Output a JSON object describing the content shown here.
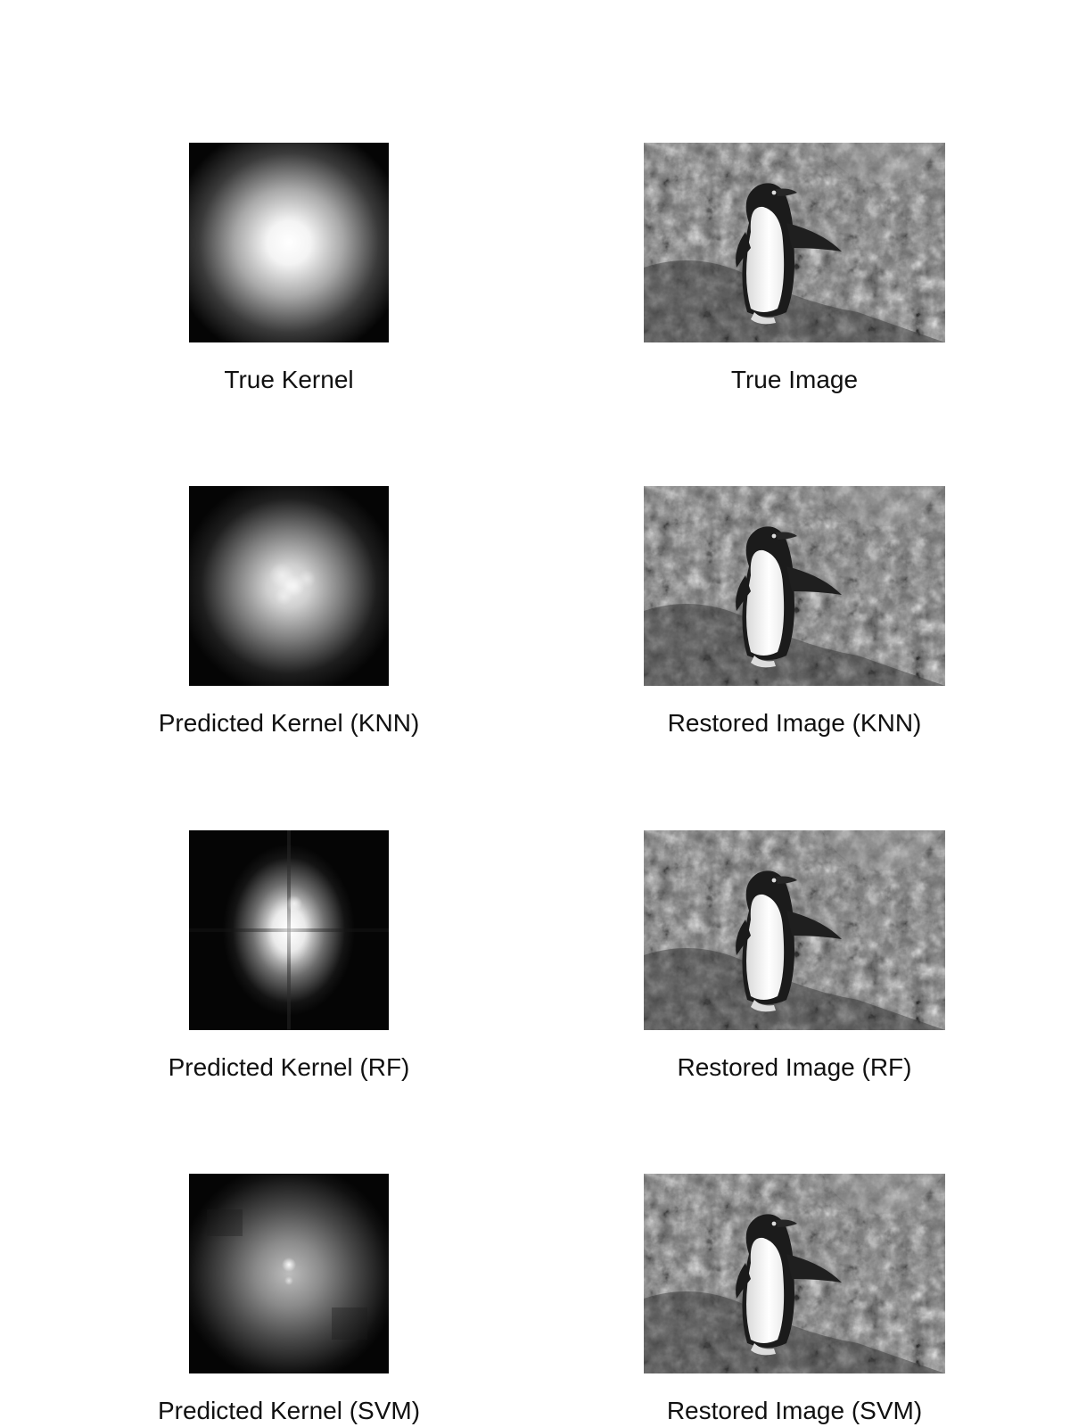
{
  "panels": [
    {
      "kernel_caption": "True Kernel",
      "image_caption": "True Image"
    },
    {
      "kernel_caption": "Predicted Kernel (KNN)",
      "image_caption": "Restored Image (KNN)"
    },
    {
      "kernel_caption": "Predicted Kernel (RF)",
      "image_caption": "Restored Image (RF)"
    },
    {
      "kernel_caption": "Predicted Kernel (SVM)",
      "image_caption": "Restored Image (SVM)"
    }
  ]
}
